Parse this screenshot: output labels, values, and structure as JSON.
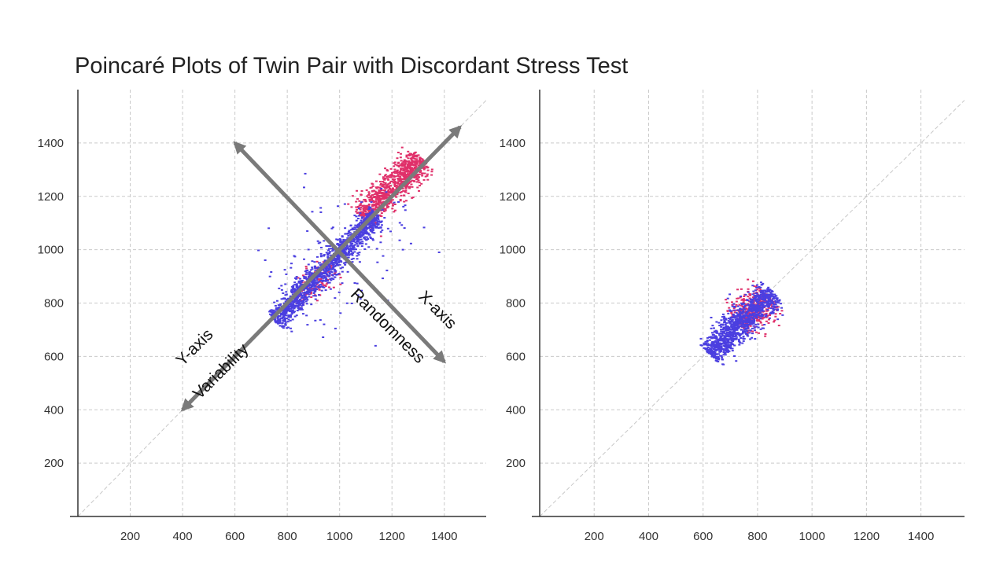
{
  "title": "Poincaré Plots of Twin Pair with Discordant Stress Test",
  "colors": {
    "series_a": "#e0306a",
    "series_b": "#4b3fe0",
    "arrow": "#7a7a7a",
    "grid": "#c9c9c9",
    "identity": "#c8c8c8"
  },
  "chart_data": [
    {
      "type": "scatter",
      "xlim": [
        0,
        1560
      ],
      "ylim": [
        0,
        1600
      ],
      "xticks": [
        200,
        400,
        600,
        800,
        1000,
        1200,
        1400
      ],
      "yticks": [
        200,
        400,
        600,
        800,
        1000,
        1200,
        1400
      ],
      "xtick_labels": [
        "200",
        "400",
        "600",
        "800",
        "1000",
        "1200",
        "1400"
      ],
      "ytick_labels": [
        "200",
        "400",
        "600",
        "800",
        "1000",
        "1200",
        "1400"
      ],
      "grid": true,
      "identity_line": true,
      "clusters": [
        {
          "color": "series_a",
          "center": [
            1200,
            1230
          ],
          "len": 320,
          "width": 70,
          "count": 900
        },
        {
          "color": "series_a",
          "center": [
            900,
            870
          ],
          "len": 200,
          "width": 70,
          "count": 120
        },
        {
          "color": "series_b",
          "center": [
            950,
            930
          ],
          "len": 560,
          "width": 55,
          "count": 1300
        },
        {
          "color": "series_b",
          "center": [
            1000,
            1000
          ],
          "len": 600,
          "width": 260,
          "count": 140
        }
      ],
      "arrows": [
        {
          "from": [
            400,
            400
          ],
          "to": [
            1460,
            1460
          ]
        },
        {
          "from": [
            1400,
            580
          ],
          "to": [
            600,
            1400
          ]
        }
      ],
      "annotations": [
        {
          "text": "X-axis",
          "at": [
            1360,
            760
          ],
          "rotate": 45
        },
        {
          "text": "Randomness",
          "at": [
            1170,
            700
          ],
          "rotate": 45
        },
        {
          "text": "Y-axis",
          "at": [
            460,
            620
          ],
          "rotate": -45
        },
        {
          "text": "Variability",
          "at": [
            560,
            530
          ],
          "rotate": -45
        }
      ]
    },
    {
      "type": "scatter",
      "xlim": [
        0,
        1560
      ],
      "ylim": [
        0,
        1600
      ],
      "xticks": [
        200,
        400,
        600,
        800,
        1000,
        1200,
        1400
      ],
      "yticks": [
        200,
        400,
        600,
        800,
        1000,
        1200,
        1400
      ],
      "xtick_labels": [
        "200",
        "400",
        "600",
        "800",
        "1000",
        "1200",
        "1400"
      ],
      "ytick_labels": [
        "200",
        "400",
        "600",
        "800",
        "1000",
        "1200",
        "1400"
      ],
      "grid": true,
      "identity_line": true,
      "clusters": [
        {
          "color": "series_a",
          "center": [
            785,
            775
          ],
          "len": 150,
          "width": 90,
          "count": 350
        },
        {
          "color": "series_b",
          "center": [
            740,
            725
          ],
          "len": 330,
          "width": 70,
          "count": 1100
        }
      ],
      "arrows": [],
      "annotations": []
    }
  ]
}
